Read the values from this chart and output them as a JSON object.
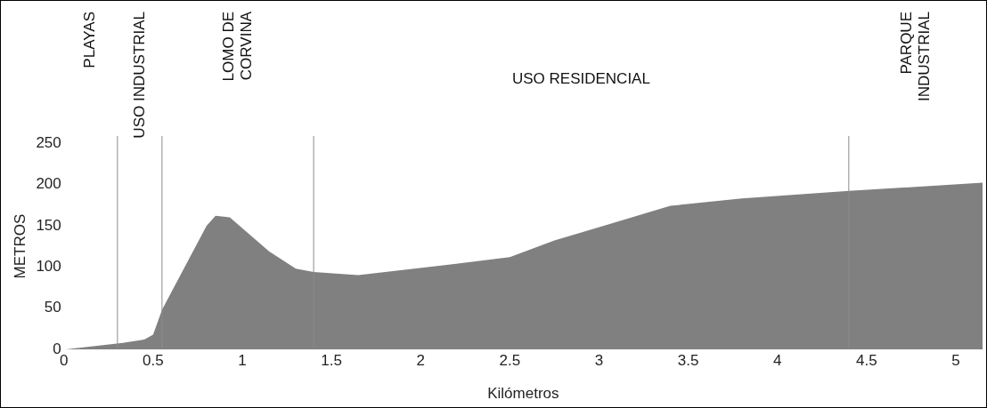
{
  "chart_data": {
    "type": "area",
    "xlabel": "Kilómetros",
    "ylabel": "METROS",
    "x": [
      0,
      0.33,
      0.45,
      0.5,
      0.55,
      0.8,
      0.85,
      0.93,
      1.15,
      1.3,
      1.4,
      1.65,
      2.05,
      2.5,
      2.75,
      3.4,
      3.8,
      4.4,
      5.15
    ],
    "series": [
      {
        "color": "#808080",
        "values": [
          0,
          8,
          12,
          18,
          48,
          150,
          162,
          160,
          119,
          98,
          94,
          90,
          100,
          112,
          132,
          174,
          183,
          192,
          202
        ]
      }
    ],
    "xlim": [
      0,
      5.15
    ],
    "xticks": [
      0,
      0.5,
      1,
      1.5,
      2,
      2.5,
      3,
      3.5,
      4,
      4.5,
      5
    ],
    "ylim": [
      0,
      250
    ],
    "yticks": [
      0,
      50,
      100,
      150,
      200,
      250
    ],
    "marker": "none",
    "legend": false,
    "ref_lines": [
      {
        "axis": "x",
        "value": 0.3
      },
      {
        "axis": "x",
        "value": 0.55
      },
      {
        "axis": "x",
        "value": 1.4
      },
      {
        "axis": "x",
        "value": 4.4
      }
    ],
    "annotations": [
      "PLAYAS",
      "USO INDUSTRIAL",
      "LOMO DE CORVINA",
      "USO RESIDENCIAL",
      "PARQUE INDUSTRIAL"
    ]
  }
}
